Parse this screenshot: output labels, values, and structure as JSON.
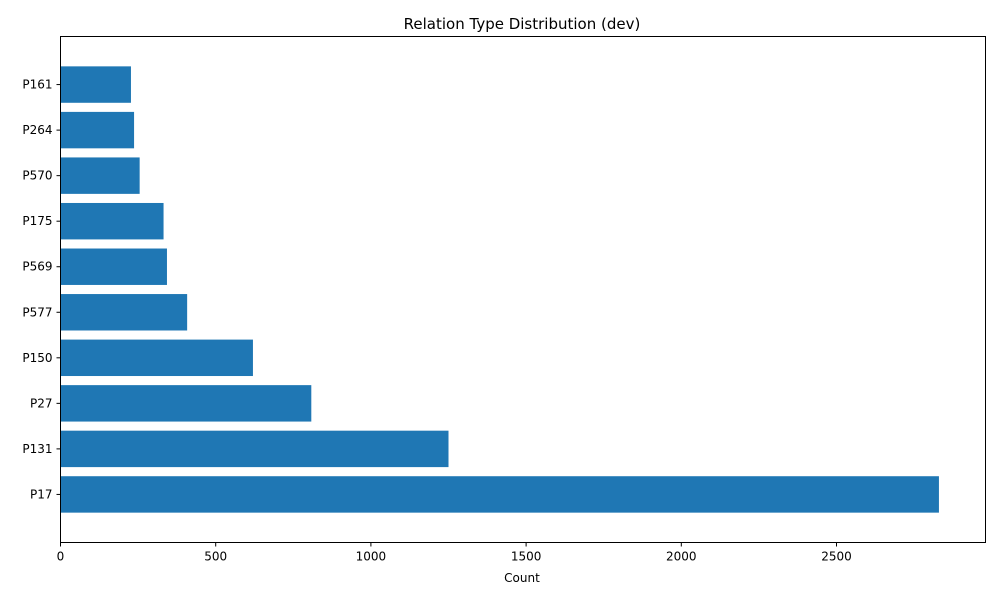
{
  "chart_data": {
    "type": "bar",
    "orientation": "horizontal",
    "title": "Relation Type Distribution (dev)",
    "xlabel": "Count",
    "ylabel": "",
    "categories": [
      "P17",
      "P131",
      "P27",
      "P150",
      "P577",
      "P569",
      "P175",
      "P570",
      "P264",
      "P161"
    ],
    "values": [
      2830,
      1250,
      808,
      620,
      408,
      343,
      332,
      255,
      237,
      227
    ],
    "xlim": [
      0,
      2980
    ],
    "xticks": [
      0,
      500,
      1000,
      1500,
      2000,
      2500
    ],
    "grid": false,
    "legend": "none",
    "bar_color": "#1f77b4"
  }
}
